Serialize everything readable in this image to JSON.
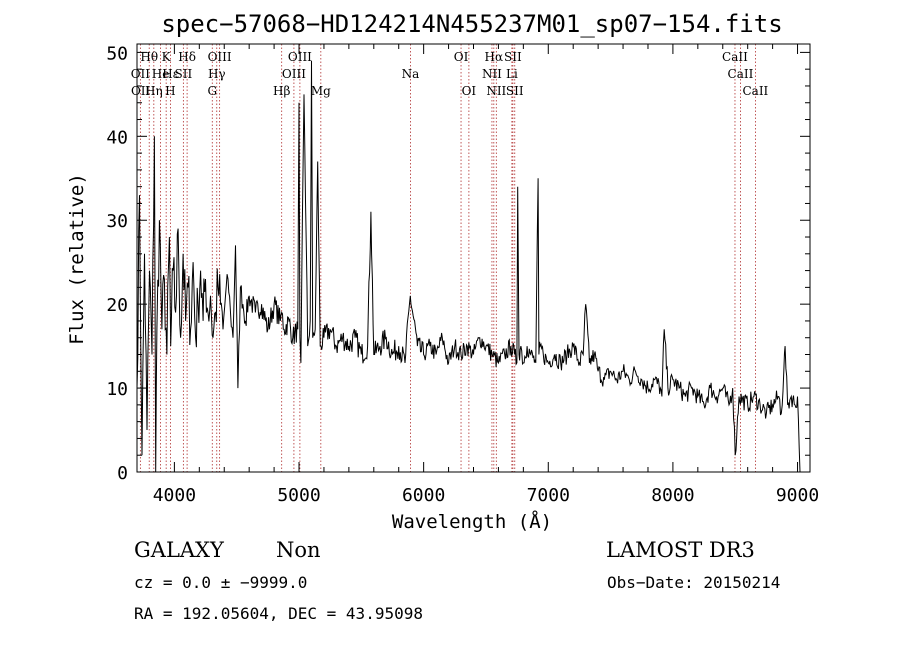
{
  "chart_data": {
    "type": "line",
    "title": "spec−57068−HD124214N455237M01_sp07−154.fits",
    "xlabel": "Wavelength (Å)",
    "ylabel": "Flux (relative)",
    "xlim": [
      3700,
      9100
    ],
    "ylim": [
      0,
      51
    ],
    "xticks": [
      4000,
      5000,
      6000,
      7000,
      8000,
      9000
    ],
    "yticks": [
      0,
      10,
      20,
      30,
      40,
      50
    ],
    "grid": false,
    "series": [
      {
        "name": "spectrum",
        "x": [
          3700,
          3720,
          3740,
          3760,
          3780,
          3800,
          3820,
          3840,
          3850,
          3860,
          3880,
          3900,
          3920,
          3940,
          3960,
          3970,
          3990,
          4010,
          4030,
          4050,
          4070,
          4090,
          4110,
          4130,
          4150,
          4170,
          4190,
          4210,
          4230,
          4250,
          4270,
          4290,
          4310,
          4330,
          4350,
          4370,
          4390,
          4410,
          4430,
          4450,
          4470,
          4490,
          4510,
          4530,
          4550,
          4570,
          4600,
          4650,
          4700,
          4750,
          4800,
          4850,
          4861,
          4880,
          4920,
          4950,
          4990,
          5000,
          5007,
          5015,
          5040,
          5070,
          5090,
          5100,
          5110,
          5130,
          5150,
          5170,
          5200,
          5250,
          5300,
          5350,
          5400,
          5450,
          5500,
          5550,
          5577,
          5600,
          5650,
          5700,
          5750,
          5800,
          5850,
          5893,
          5950,
          6000,
          6050,
          6100,
          6150,
          6200,
          6250,
          6300,
          6350,
          6400,
          6450,
          6500,
          6550,
          6600,
          6650,
          6700,
          6730,
          6748,
          6755,
          6765,
          6780,
          6800,
          6830,
          6860,
          6900,
          6918,
          6925,
          6935,
          6960,
          7000,
          7050,
          7100,
          7150,
          7200,
          7250,
          7280,
          7300,
          7330,
          7370,
          7400,
          7450,
          7500,
          7550,
          7600,
          7650,
          7700,
          7750,
          7800,
          7850,
          7900,
          7912,
          7930,
          7960,
          8000,
          8050,
          8100,
          8150,
          8200,
          8250,
          8300,
          8350,
          8400,
          8450,
          8480,
          8500,
          8530,
          8600,
          8650,
          8700,
          8750,
          8800,
          8850,
          8870,
          8890,
          8900,
          8920,
          8950,
          8980,
          9000,
          9020
        ],
        "values": [
          10,
          33,
          2,
          26,
          5,
          24,
          14,
          40,
          0,
          17,
          30,
          17,
          23,
          14,
          28,
          15,
          24,
          19,
          29,
          16,
          26,
          18,
          22,
          17,
          25,
          16,
          20,
          24,
          18,
          23,
          19,
          21,
          16,
          19,
          22,
          20,
          17,
          21,
          23,
          19,
          16,
          27,
          10,
          22,
          20,
          18,
          21,
          19,
          20,
          17,
          20,
          18,
          19,
          17,
          18,
          16,
          17,
          44,
          16,
          13,
          45,
          15,
          18,
          49,
          16,
          17,
          37,
          15,
          16,
          17,
          15,
          16,
          15,
          16,
          14,
          15,
          31,
          14,
          15,
          16,
          14,
          15,
          13,
          21,
          15,
          14,
          15,
          14,
          16,
          13,
          15,
          14,
          15,
          14,
          16,
          15,
          14,
          13,
          14,
          15,
          14,
          13,
          34,
          14,
          15,
          13,
          15,
          14,
          13,
          35,
          14,
          15,
          14,
          13,
          14,
          13,
          14,
          15,
          13,
          14,
          20,
          13,
          14,
          12,
          11,
          12,
          11,
          12,
          11,
          12,
          11,
          10,
          11,
          10,
          9,
          17,
          10,
          11,
          10,
          9,
          10,
          9,
          8,
          10,
          9,
          10,
          8,
          10,
          2,
          9,
          8,
          9,
          8,
          7,
          8,
          9,
          7,
          12,
          15,
          8,
          9,
          8,
          9,
          0
        ]
      }
    ],
    "line_markers": [
      {
        "label": "OII",
        "x": 3727,
        "row": 2
      },
      {
        "label": "OII",
        "x": 3729,
        "row": 3
      },
      {
        "label": "Hθ",
        "x": 3798,
        "row": 1
      },
      {
        "label": "Hη",
        "x": 3835,
        "row": 3
      },
      {
        "label": "He",
        "x": 3889,
        "row": 2
      },
      {
        "label": "K",
        "x": 3934,
        "row": 1
      },
      {
        "label": "H",
        "x": 3968,
        "row": 3
      },
      {
        "label": "Hε",
        "x": 3970,
        "row": 2
      },
      {
        "label": "SII",
        "x": 4072,
        "row": 2
      },
      {
        "label": "Hδ",
        "x": 4102,
        "row": 1
      },
      {
        "label": "OIII",
        "x": 4363,
        "row": 1
      },
      {
        "label": "Hγ",
        "x": 4340,
        "row": 2
      },
      {
        "label": "G",
        "x": 4304,
        "row": 3
      },
      {
        "label": "Hβ",
        "x": 4861,
        "row": 3
      },
      {
        "label": "OIII",
        "x": 5007,
        "row": 1
      },
      {
        "label": "OIII",
        "x": 4959,
        "row": 2
      },
      {
        "label": "Mg",
        "x": 5175,
        "row": 3
      },
      {
        "label": "Na",
        "x": 5894,
        "row": 2
      },
      {
        "label": "OI",
        "x": 6300,
        "row": 1
      },
      {
        "label": "OI",
        "x": 6363,
        "row": 3
      },
      {
        "label": "Hα",
        "x": 6563,
        "row": 1
      },
      {
        "label": "NII",
        "x": 6548,
        "row": 2
      },
      {
        "label": "NII",
        "x": 6583,
        "row": 3
      },
      {
        "label": "SII",
        "x": 6716,
        "row": 1
      },
      {
        "label": "Li",
        "x": 6708,
        "row": 2
      },
      {
        "label": "SII",
        "x": 6731,
        "row": 3
      },
      {
        "label": "CaII",
        "x": 8498,
        "row": 1
      },
      {
        "label": "CaII",
        "x": 8542,
        "row": 2
      },
      {
        "label": "CaII",
        "x": 8662,
        "row": 3
      }
    ],
    "line_marker_positions": [
      3727,
      3798,
      3835,
      3889,
      3934,
      3968,
      4072,
      4102,
      4304,
      4340,
      4363,
      4861,
      4959,
      5007,
      5175,
      5894,
      6300,
      6363,
      6548,
      6563,
      6583,
      6708,
      6716,
      6731,
      8498,
      8542,
      8662
    ]
  },
  "info": {
    "class": "GALAXY",
    "subclass": "Non",
    "survey": "LAMOST DR3",
    "cz": "cz = 0.0 ± −9999.0",
    "obs_date": "Obs−Date: 20150214",
    "coords": "RA = 192.05604, DEC =  43.95098"
  },
  "colors": {
    "spectrum": "#000000",
    "marker_line": "#b03030",
    "axis": "#000000"
  }
}
